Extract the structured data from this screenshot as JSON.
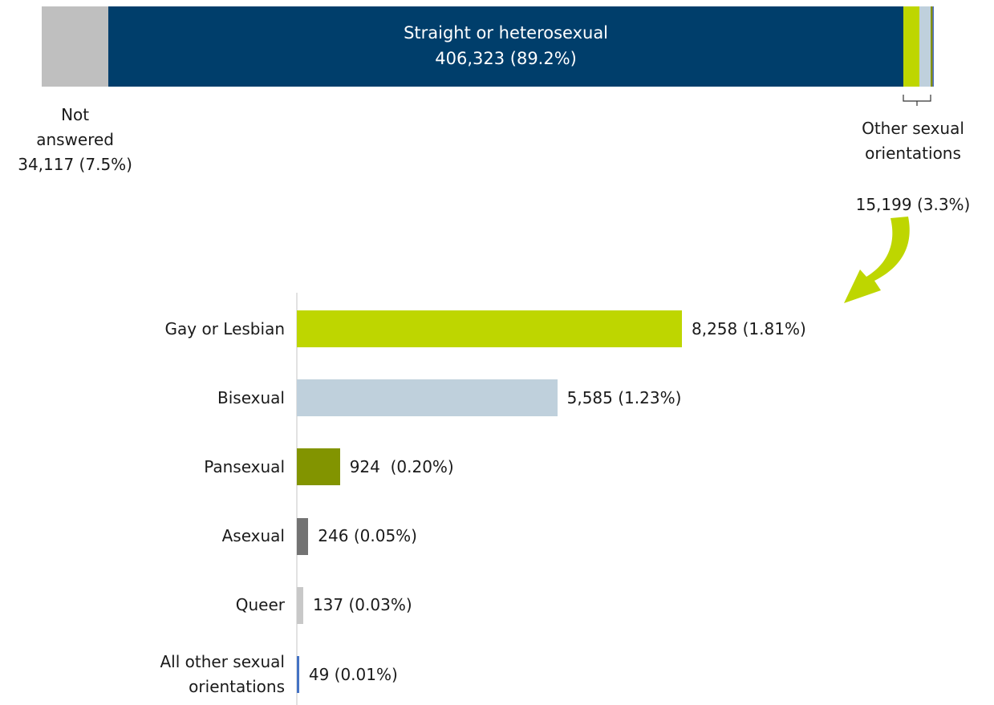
{
  "chart_data": [
    {
      "type": "stacked-bar",
      "categories": [
        "Not answered",
        "Straight or heterosexual",
        "Other sexual orientations"
      ],
      "values": [
        34117,
        406323,
        15199
      ],
      "value_labels": [
        "34,117 (7.5%)",
        "406,323 (89.2%)",
        "15,199 (3.3%)"
      ],
      "colors": [
        "#bfbfbf",
        "#003e6b",
        "#bed600"
      ]
    },
    {
      "type": "hbar",
      "categories": [
        "Gay or Lesbian",
        "Bisexual",
        "Pansexual",
        "Asexual",
        "Queer",
        "All other sexual orientations"
      ],
      "values": [
        8258,
        5585,
        924,
        246,
        137,
        49
      ],
      "value_labels": [
        "8,258 (1.81%)",
        "5,585 (1.23%)",
        "924  (0.20%)",
        "246 (0.05%)",
        "137 (0.03%)",
        "49 (0.01%)"
      ],
      "colors": [
        "#bed600",
        "#bfd0dc",
        "#829400",
        "#737373",
        "#c8c8c8",
        "#4472c4"
      ]
    }
  ]
}
